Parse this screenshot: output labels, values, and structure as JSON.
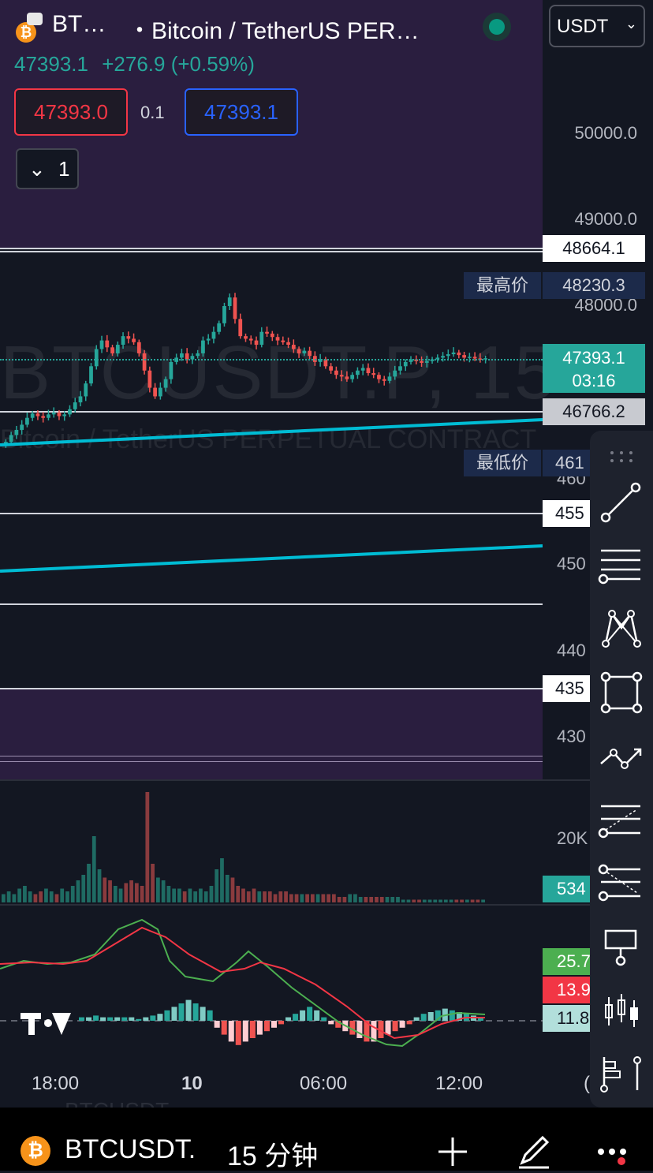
{
  "header": {
    "symbol_short": "BT…",
    "symbol_full": "・Bitcoin / TetherUS PER…",
    "currency": "USDT"
  },
  "quote": {
    "last": "47393.1",
    "change": "+276.9 (+0.59%)",
    "bid": "47393.0",
    "spread": "0.1",
    "ask": "47393.1",
    "collapse_count": "1"
  },
  "watermark": {
    "ticker": "BTCUSDT.P, 15",
    "description": "Bitcoin / TetherUS PERPETUAL CONTRACT"
  },
  "price_axis": {
    "ticks": [
      "50000.0",
      "49000.0",
      "48000.0",
      "460",
      "450",
      "440",
      "430"
    ],
    "tags": {
      "line1": "48664.1",
      "high_label": "最高价",
      "high_value": "48230.3",
      "current_price": "47393.1",
      "countdown": "03:16",
      "line2": "46766.2",
      "low_label": "最低价",
      "low_value": "461",
      "line3": "455",
      "line4": "435"
    }
  },
  "volume": {
    "tick": "20K",
    "current": "534"
  },
  "oscillator": {
    "value_green": "25.7",
    "value_red": "13.9",
    "value_teal": "11.8"
  },
  "time_axis": {
    "labels": [
      "18:00",
      "10",
      "06:00",
      "12:00",
      "("
    ]
  },
  "footer": {
    "symbol": "BTCUSDT.",
    "interval": "15 分钟",
    "ghost_symbol": "BTCUSDT"
  },
  "colors": {
    "up": "#26a69a",
    "down": "#ef5350",
    "trendline": "#00bcd4",
    "zone": "#2a1e3f",
    "toolbar": "#1e222d"
  },
  "toolbar_icons": [
    "grip-icon",
    "trendline-icon",
    "horizontal-lines-icon",
    "pattern-icon",
    "rectangle-icon",
    "path-icon",
    "fib-retracement-icon",
    "fib-extension-icon",
    "text-note-icon",
    "candles-icon",
    "bar-order-icon"
  ],
  "chart_data": {
    "type": "candlestick",
    "y_range": [
      43000,
      50500
    ],
    "candles_desc": "approximate 15-minute OHLC sequence",
    "closes": [
      46420,
      46500,
      46560,
      46620,
      46700,
      46750,
      46720,
      46700,
      46740,
      46760,
      46720,
      46740,
      46800,
      46880,
      46950,
      47100,
      47300,
      47500,
      47600,
      47520,
      47450,
      47550,
      47650,
      47620,
      47580,
      47450,
      47250,
      47050,
      46950,
      47050,
      47150,
      47350,
      47400,
      47450,
      47380,
      47420,
      47450,
      47600,
      47620,
      47700,
      47800,
      48000,
      48100,
      47850,
      47650,
      47620,
      47600,
      47550,
      47700,
      47680,
      47640,
      47600,
      47580,
      47550,
      47500,
      47450,
      47480,
      47420,
      47350,
      47380,
      47300,
      47250,
      47200,
      47180,
      47150,
      47200,
      47250,
      47280,
      47220,
      47200,
      47150,
      47130,
      47180,
      47250,
      47300,
      47350,
      47380,
      47360,
      47340,
      47360,
      47380,
      47400,
      47420,
      47440,
      47460,
      47430,
      47400,
      47410,
      47390,
      47380,
      47393
    ],
    "volume_series": [
      3,
      4,
      3,
      5,
      6,
      4,
      3,
      4,
      5,
      4,
      3,
      5,
      4,
      6,
      8,
      10,
      14,
      24,
      12,
      9,
      8,
      6,
      5,
      7,
      8,
      7,
      6,
      40,
      14,
      9,
      8,
      6,
      5,
      5,
      4,
      5,
      4,
      5,
      4,
      6,
      12,
      16,
      10,
      9,
      6,
      5,
      4,
      5,
      4,
      4,
      4,
      3,
      4,
      4,
      3,
      3,
      3,
      3,
      3,
      3,
      3,
      3,
      3,
      2,
      2,
      3,
      3,
      2,
      2,
      2,
      2,
      2,
      2,
      2,
      2,
      1,
      1,
      1,
      1,
      1,
      1,
      1,
      1,
      1,
      1,
      1,
      1,
      1,
      1,
      1,
      1
    ],
    "volume_ticks": [
      "20K"
    ]
  }
}
